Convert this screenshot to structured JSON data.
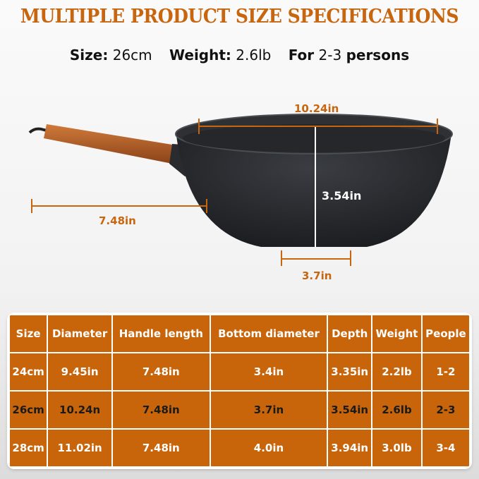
{
  "title": "MULTIPLE PRODUCT SIZE SPECIFICATIONS",
  "summary": {
    "size_label": "Size:",
    "size_value": "26cm",
    "weight_label": "Weight:",
    "weight_value": "2.6lb",
    "for_label": "For",
    "people_value": "2-3",
    "persons_label": "persons"
  },
  "dimensions": {
    "diameter": "10.24in",
    "handle": "7.48in",
    "depth": "3.54in",
    "bottom": "3.7in"
  },
  "colors": {
    "accent": "#c8650f",
    "table_bg": "#c8650b"
  },
  "table": {
    "headers": [
      "Size",
      "Diameter",
      "Handle length",
      "Bottom diameter",
      "Depth",
      "Weight",
      "People"
    ],
    "rows": [
      [
        "24cm",
        "9.45in",
        "7.48in",
        "3.4in",
        "3.35in",
        "2.2lb",
        "1-2"
      ],
      [
        "26cm",
        "10.24n",
        "7.48in",
        "3.7in",
        "3.54in",
        "2.6lb",
        "2-3"
      ],
      [
        "28cm",
        "11.02in",
        "7.48in",
        "4.0in",
        "3.94in",
        "3.0lb",
        "3-4"
      ]
    ]
  }
}
